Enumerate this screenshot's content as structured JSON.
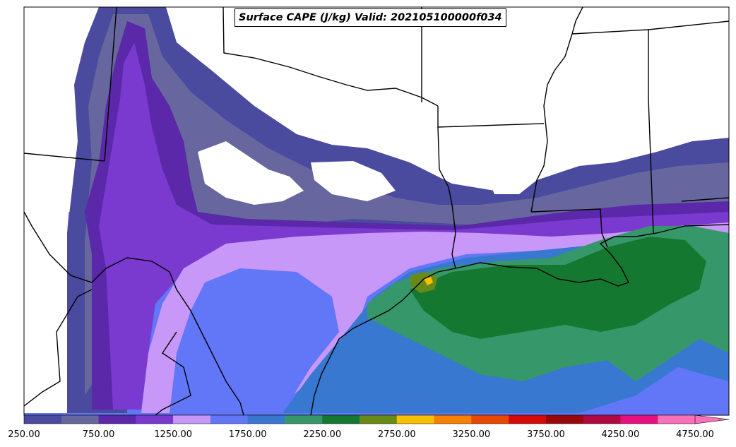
{
  "title": "Surface CAPE (J/kg) Valid: 202105100000f034",
  "colorbar": {
    "tick_labels": [
      "250.00",
      "750.00",
      "1250.00",
      "1750.00",
      "2250.00",
      "2750.00",
      "3250.00",
      "3750.00",
      "4250.00",
      "4750.00"
    ],
    "colors": [
      "#4a4a9e",
      "#67669e",
      "#5a28a8",
      "#7a3ad0",
      "#c898f8",
      "#6277f8",
      "#3878d0",
      "#36986a",
      "#157830",
      "#6a8a18",
      "#f8c000",
      "#f88000",
      "#e84800",
      "#d80808",
      "#980808",
      "#b00840",
      "#e81080",
      "#f870b8"
    ],
    "extend": "max"
  },
  "map": {
    "region": "Texas / Gulf of Mexico",
    "fill_colors": {
      "purple_dark": "#5a28a8",
      "purple": "#7a3ad0",
      "slate": "#4a4a9e",
      "slate_light": "#67669e",
      "lavender": "#c898f8",
      "blue": "#6277f8",
      "blue_mid": "#3878d0",
      "green": "#36986a",
      "green_dark": "#157830",
      "olive": "#6a8a18",
      "yellow": "#f8c000"
    },
    "border_color": "#000000"
  }
}
